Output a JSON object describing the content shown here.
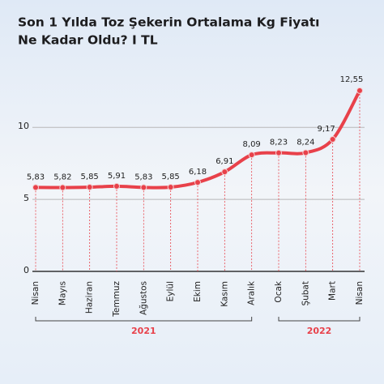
{
  "chart_data": {
    "type": "line",
    "title": "Son 1 Yılda Toz Şekerin Ortalama Kg Fiyatı",
    "subtitle": "Ne Kadar Oldu? I TL",
    "categories": [
      "Nisan",
      "Mayıs",
      "Haziran",
      "Temmuz",
      "Ağustos",
      "Eylül",
      "Ekim",
      "Kasım",
      "Aralık",
      "Ocak",
      "Şubat",
      "Mart",
      "Nisan"
    ],
    "series": [
      {
        "color": "#e8414a",
        "values": [
          5.83,
          5.82,
          5.85,
          5.91,
          5.83,
          5.85,
          6.18,
          6.91,
          8.09,
          8.23,
          8.24,
          9.17,
          12.55
        ],
        "value_labels": [
          "5,83",
          "5,82",
          "5,85",
          "5,91",
          "5,83",
          "5,85",
          "6,18",
          "6,91",
          "8,09",
          "8,23",
          "8,24",
          "9,17",
          "12,55"
        ]
      }
    ],
    "x_groups": [
      {
        "label": "2021",
        "count": 9
      },
      {
        "label": "2022",
        "count": 4
      }
    ],
    "ylim": [
      0,
      13.5
    ],
    "yticks": [
      0,
      5,
      10
    ],
    "grid": true
  }
}
